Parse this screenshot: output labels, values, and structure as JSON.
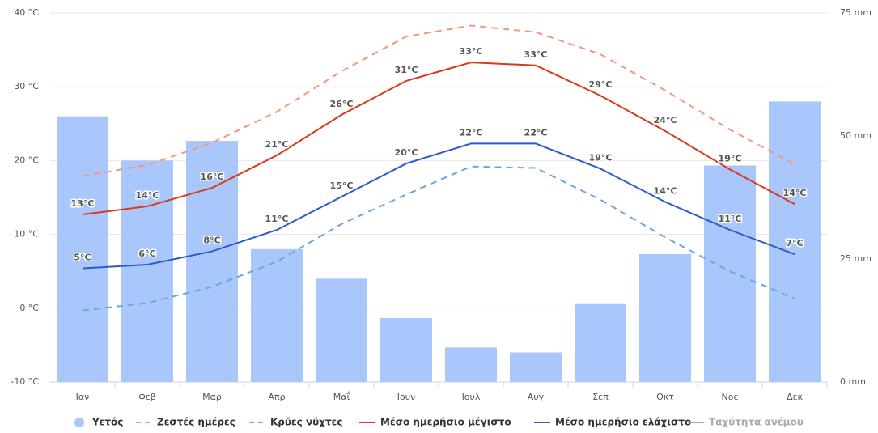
{
  "chart_data": {
    "type": "combo",
    "categories": [
      "Ιαν",
      "Φεβ",
      "Μαρ",
      "Απρ",
      "Μαΐ",
      "Ιουν",
      "Ιουλ",
      "Αυγ",
      "Σεπ",
      "Οκτ",
      "Νοε",
      "Δεκ"
    ],
    "ylim": [
      -10,
      40
    ],
    "yticks": [
      {
        "value": -10,
        "label": "-10 °C"
      },
      {
        "value": 0,
        "label": "0 °C"
      },
      {
        "value": 10,
        "label": "10 °C"
      },
      {
        "value": 20,
        "label": "20 °C"
      },
      {
        "value": 30,
        "label": "30 °C"
      },
      {
        "value": 40,
        "label": "40 °C"
      }
    ],
    "y2lim": [
      0,
      75
    ],
    "y2ticks": [
      {
        "value": 0,
        "label": "0 mm"
      },
      {
        "value": 25,
        "label": "25 mm"
      },
      {
        "value": 50,
        "label": "50 mm"
      },
      {
        "value": 75,
        "label": "75 mm"
      }
    ],
    "grid": true,
    "series": [
      {
        "name": "Υετός",
        "type": "bar",
        "axis": "y2",
        "color": "#a9c7fb",
        "values": [
          54,
          45,
          49,
          27,
          21,
          13,
          7,
          6,
          16,
          26,
          44,
          57
        ]
      },
      {
        "name": "Ζεστές ημέρες",
        "type": "line",
        "dash": true,
        "color": "#f4977c",
        "values": [
          17.9,
          19.4,
          22.4,
          26.6,
          32.1,
          36.8,
          38.3,
          37.4,
          34.4,
          29.5,
          24.2,
          19.5
        ]
      },
      {
        "name": "Κρύες νύχτες",
        "type": "line",
        "dash": true,
        "color": "#6aa6e2",
        "values": [
          -0.3,
          0.7,
          2.9,
          6.3,
          11.4,
          15.4,
          19.2,
          19.0,
          14.7,
          9.6,
          5.0,
          1.3
        ]
      },
      {
        "name": "Μέσο ημερήσιο μέγιστο",
        "type": "line",
        "color": "#d9391a",
        "values": [
          12.7,
          13.8,
          16.3,
          20.7,
          26.2,
          30.8,
          33.3,
          32.9,
          28.8,
          24.0,
          18.8,
          14.1
        ],
        "value_labels": [
          "13°C",
          "14°C",
          "16°C",
          "21°C",
          "26°C",
          "31°C",
          "33°C",
          "33°C",
          "29°C",
          "24°C",
          "19°C",
          "14°C"
        ]
      },
      {
        "name": "Μέσο ημερήσιο ελάχιστο",
        "type": "line",
        "color": "#2b5ccc",
        "values": [
          5.4,
          5.9,
          7.7,
          10.6,
          15.1,
          19.6,
          22.3,
          22.3,
          18.9,
          14.4,
          10.6,
          7.3
        ],
        "value_labels": [
          "5°C",
          "6°C",
          "8°C",
          "11°C",
          "15°C",
          "20°C",
          "22°C",
          "22°C",
          "19°C",
          "14°C",
          "11°C",
          "7°C"
        ]
      },
      {
        "name": "Ταχύτητα ανέμου",
        "type": "line",
        "visible": false,
        "color": "#aaaaaa",
        "values": [
          null,
          null,
          null,
          null,
          null,
          null,
          null,
          null,
          null,
          null,
          null,
          null
        ]
      }
    ]
  }
}
